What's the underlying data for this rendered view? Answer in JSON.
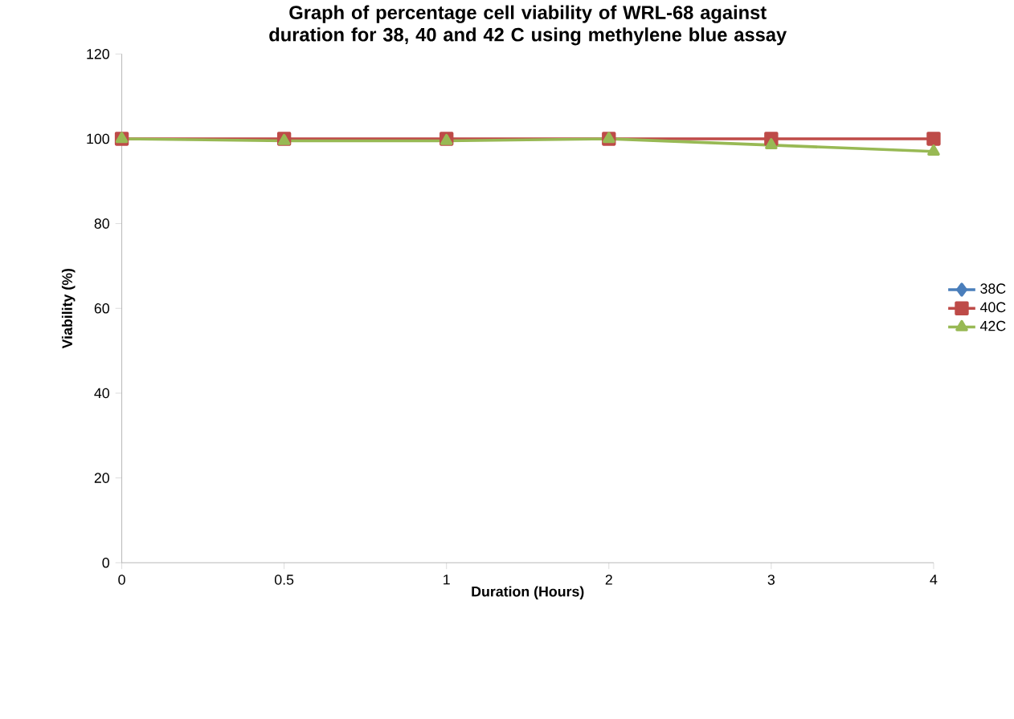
{
  "chart_data": {
    "type": "line",
    "title": "Graph of percentage cell viability of WRL-68 against duration for 38, 40 and 42 C using methylene blue assay",
    "xlabel": "Duration (Hours)",
    "ylabel": "Viability (%)",
    "categories": [
      "0",
      "0.5",
      "1",
      "2",
      "3",
      "4"
    ],
    "series": [
      {
        "name": "38C",
        "color": "#4a7ebb",
        "marker": "diamond",
        "values": [
          null,
          null,
          null,
          null,
          null,
          null
        ]
      },
      {
        "name": "40C",
        "color": "#be4b48",
        "marker": "square",
        "values": [
          100,
          100,
          100,
          100,
          100,
          100
        ]
      },
      {
        "name": "42C",
        "color": "#98b954",
        "marker": "triangle",
        "values": [
          100,
          99.5,
          99.5,
          100,
          98.5,
          97
        ]
      }
    ],
    "ylim": [
      0,
      120
    ],
    "yticks": [
      0,
      20,
      40,
      60,
      80,
      100,
      120
    ],
    "grid": false,
    "legend": "right",
    "line_style": "solid"
  }
}
